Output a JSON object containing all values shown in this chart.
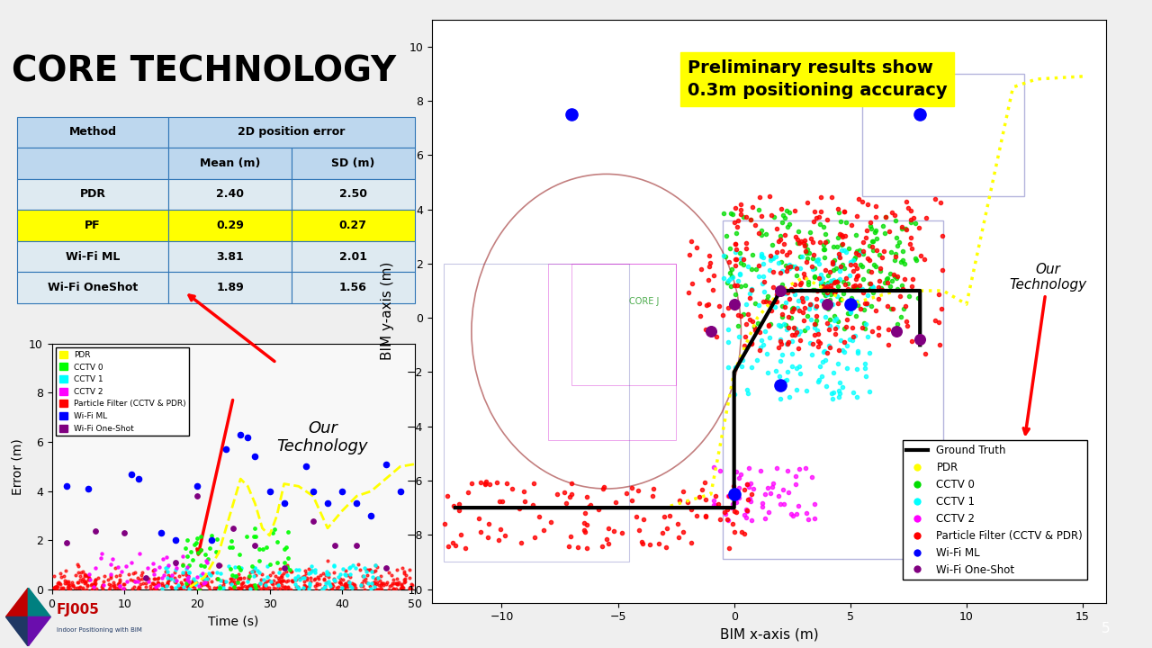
{
  "title": "CORE TECHNOLOGY",
  "table": {
    "rows": [
      [
        "PDR",
        "2.40",
        "2.50",
        false
      ],
      [
        "PF",
        "0.29",
        "0.27",
        true
      ],
      [
        "Wi-Fi ML",
        "3.81",
        "2.01",
        false
      ],
      [
        "Wi-Fi OneShot",
        "1.89",
        "1.56",
        false
      ]
    ],
    "highlight_color": "#FFFF00",
    "header_bg": "#BDD7EE",
    "row_bg": "#DEEAF1",
    "border_color": "#2F75B6"
  },
  "error_plot": {
    "xlabel": "Time (s)",
    "ylabel": "Error (m)",
    "xlim": [
      0,
      50
    ],
    "ylim": [
      0,
      10
    ],
    "yticks": [
      0,
      2,
      4,
      6,
      8,
      10
    ],
    "xticks": [
      0,
      10,
      20,
      30,
      40,
      50
    ]
  },
  "scatter_plot": {
    "xlabel": "BIM x-axis (m)",
    "ylabel": "BIM y-axis (m)",
    "xlim": [
      -13,
      16
    ],
    "ylim": [
      -10.5,
      11
    ],
    "xticks": [
      -10,
      -5,
      0,
      5,
      10,
      15
    ],
    "yticks": [
      -10,
      -8,
      -6,
      -4,
      -2,
      0,
      2,
      4,
      6,
      8,
      10
    ],
    "annotation": "Preliminary results show\n0.3m positioning accuracy",
    "annotation_bg": "#FFFF00"
  },
  "slide_bg": "#EFEFEF",
  "bottom_bar_color": "#C00000",
  "bottom_bar2_color": "#1F3864"
}
